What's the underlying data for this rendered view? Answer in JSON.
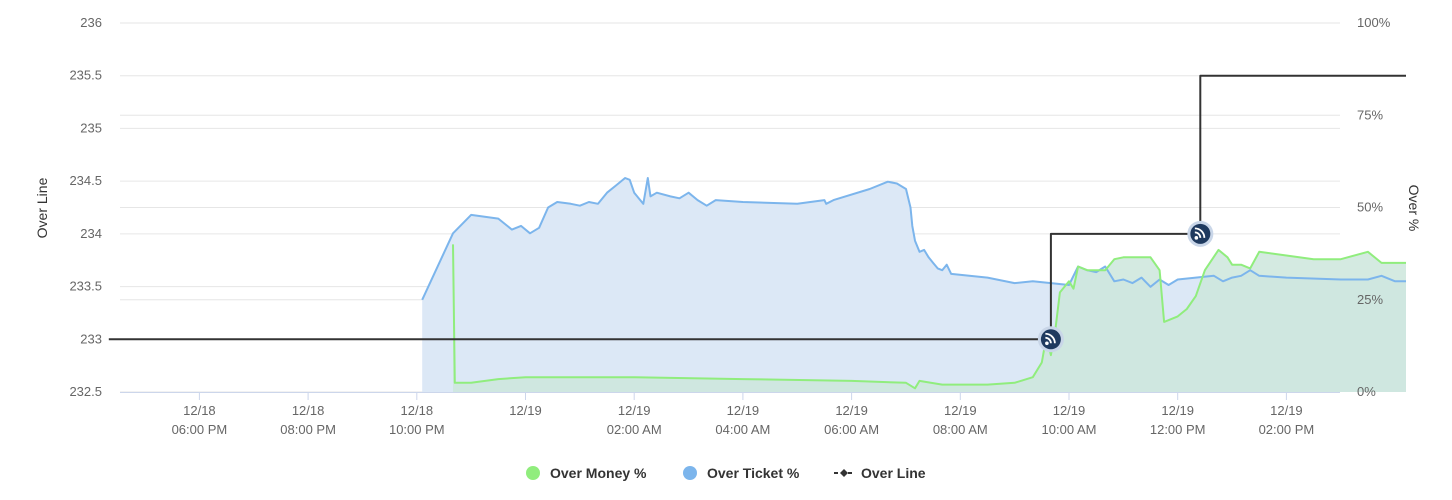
{
  "chart_data": {
    "type": "area",
    "y_axis_left": {
      "label": "Over Line",
      "ticks": [
        "236",
        "235.5",
        "235",
        "234.5",
        "234",
        "233.5",
        "233",
        "232.5"
      ],
      "range": [
        232.5,
        236
      ]
    },
    "y_axis_right": {
      "label": "Over %",
      "ticks": [
        "100%",
        "75%",
        "50%",
        "25%",
        "0%"
      ],
      "range": [
        0,
        100
      ]
    },
    "x_axis": {
      "ticks": [
        {
          "date": "12/18",
          "time": "06:00 PM"
        },
        {
          "date": "12/18",
          "time": "08:00 PM"
        },
        {
          "date": "12/18",
          "time": "10:00 PM"
        },
        {
          "date": "12/19",
          "time": ""
        },
        {
          "date": "12/19",
          "time": "02:00 AM"
        },
        {
          "date": "12/19",
          "time": "04:00 AM"
        },
        {
          "date": "12/19",
          "time": "06:00 AM"
        },
        {
          "date": "12/19",
          "time": "08:00 AM"
        },
        {
          "date": "12/19",
          "time": "10:00 AM"
        },
        {
          "date": "12/19",
          "time": "12:00 PM"
        },
        {
          "date": "12/19",
          "time": "02:00 PM"
        }
      ]
    },
    "legend": {
      "position": "bottom-center",
      "items": [
        {
          "label": "Over Money %",
          "color": "#90ed7d",
          "symbol": "circle"
        },
        {
          "label": "Over Ticket %",
          "color": "#7cb5ec",
          "symbol": "circle"
        },
        {
          "label": "Over Line",
          "color": "#333333",
          "symbol": "line-diamond"
        }
      ]
    },
    "series": [
      {
        "name": "Over Ticket %",
        "axis": "right",
        "color": "#7cb5ec",
        "fill": "#dce8f6",
        "points": [
          [
            "12/18 22:06",
            25.0
          ],
          [
            "12/18 22:40",
            43.0
          ],
          [
            "12/18 23:00",
            48.0
          ],
          [
            "12/18 23:30",
            47.0
          ],
          [
            "12/18 23:45",
            44.0
          ],
          [
            "12/18 23:55",
            45.0
          ],
          [
            "12/19 00:05",
            43.0
          ],
          [
            "12/19 00:15",
            44.5
          ],
          [
            "12/19 00:25",
            50.0
          ],
          [
            "12/19 00:35",
            51.5
          ],
          [
            "12/19 00:50",
            51.0
          ],
          [
            "12/19 01:00",
            50.5
          ],
          [
            "12/19 01:10",
            51.5
          ],
          [
            "12/19 01:20",
            51.0
          ],
          [
            "12/19 01:30",
            54.0
          ],
          [
            "12/19 01:40",
            56.0
          ],
          [
            "12/19 01:50",
            58.0
          ],
          [
            "12/19 01:55",
            57.5
          ],
          [
            "12/19 02:00",
            54.0
          ],
          [
            "12/19 02:05",
            52.5
          ],
          [
            "12/19 02:10",
            51.0
          ],
          [
            "12/19 02:15",
            58.0
          ],
          [
            "12/19 02:18",
            53.0
          ],
          [
            "12/19 02:25",
            54.0
          ],
          [
            "12/19 02:40",
            53.0
          ],
          [
            "12/19 02:50",
            52.5
          ],
          [
            "12/19 03:00",
            54.0
          ],
          [
            "12/19 03:10",
            52.0
          ],
          [
            "12/19 03:20",
            50.5
          ],
          [
            "12/19 03:30",
            52.0
          ],
          [
            "12/19 04:00",
            51.5
          ],
          [
            "12/19 05:00",
            51.0
          ],
          [
            "12/19 05:30",
            52.0
          ],
          [
            "12/19 05:32",
            51.0
          ],
          [
            "12/19 05:40",
            52.0
          ],
          [
            "12/19 06:20",
            55.0
          ],
          [
            "12/19 06:40",
            57.0
          ],
          [
            "12/19 06:50",
            56.5
          ],
          [
            "12/19 07:00",
            55.0
          ],
          [
            "12/19 07:05",
            50.0
          ],
          [
            "12/19 07:07",
            45.0
          ],
          [
            "12/19 07:10",
            41.0
          ],
          [
            "12/19 07:15",
            38.0
          ],
          [
            "12/19 07:20",
            38.5
          ],
          [
            "12/19 07:25",
            36.5
          ],
          [
            "12/19 07:30",
            35.0
          ],
          [
            "12/19 07:35",
            33.5
          ],
          [
            "12/19 07:40",
            33.0
          ],
          [
            "12/19 07:45",
            34.5
          ],
          [
            "12/19 07:50",
            32.0
          ],
          [
            "12/19 08:30",
            31.0
          ],
          [
            "12/19 09:00",
            29.5
          ],
          [
            "12/19 09:20",
            30.0
          ],
          [
            "12/19 09:40",
            29.5
          ],
          [
            "12/19 10:00",
            29.0
          ],
          [
            "12/19 10:10",
            34.0
          ],
          [
            "12/19 10:20",
            33.0
          ],
          [
            "12/19 10:30",
            32.5
          ],
          [
            "12/19 10:40",
            34.0
          ],
          [
            "12/19 10:50",
            30.0
          ],
          [
            "12/19 11:00",
            30.5
          ],
          [
            "12/19 11:10",
            29.5
          ],
          [
            "12/19 11:20",
            31.0
          ],
          [
            "12/19 11:30",
            28.5
          ],
          [
            "12/19 11:40",
            30.5
          ],
          [
            "12/19 11:50",
            29.0
          ],
          [
            "12/19 12:00",
            30.5
          ],
          [
            "12/19 12:20",
            31.0
          ],
          [
            "12/19 12:40",
            31.5
          ],
          [
            "12/19 12:50",
            30.0
          ],
          [
            "12/19 13:00",
            31.0
          ],
          [
            "12/19 13:10",
            31.5
          ],
          [
            "12/19 13:20",
            33.0
          ],
          [
            "12/19 13:30",
            31.5
          ],
          [
            "12/19 14:00",
            31.0
          ],
          [
            "12/19 15:00",
            30.5
          ],
          [
            "12/19 15:30",
            30.5
          ],
          [
            "12/19 15:45",
            31.5
          ],
          [
            "12/19 16:00",
            30.0
          ],
          [
            "12/19 16:12",
            30.0
          ]
        ]
      },
      {
        "name": "Over Money %",
        "axis": "right",
        "color": "#90ed7d",
        "fill": "#cde6dc",
        "points": [
          [
            "12/18 22:40",
            40.0
          ],
          [
            "12/18 22:42",
            2.5
          ],
          [
            "12/18 23:00",
            2.5
          ],
          [
            "12/18 23:30",
            3.5
          ],
          [
            "12/19 00:00",
            4.0
          ],
          [
            "12/19 02:00",
            4.0
          ],
          [
            "12/19 04:00",
            3.5
          ],
          [
            "12/19 06:00",
            3.0
          ],
          [
            "12/19 07:00",
            2.5
          ],
          [
            "12/19 07:10",
            1.0
          ],
          [
            "12/19 07:15",
            3.0
          ],
          [
            "12/19 07:40",
            2.0
          ],
          [
            "12/19 08:00",
            2.0
          ],
          [
            "12/19 08:30",
            2.0
          ],
          [
            "12/19 09:00",
            2.5
          ],
          [
            "12/19 09:20",
            4.0
          ],
          [
            "12/19 09:30",
            8.0
          ],
          [
            "12/19 09:35",
            15.0
          ],
          [
            "12/19 09:40",
            10.0
          ],
          [
            "12/19 09:45",
            17.0
          ],
          [
            "12/19 09:50",
            27.0
          ],
          [
            "12/19 10:00",
            30.0
          ],
          [
            "12/19 10:05",
            28.0
          ],
          [
            "12/19 10:10",
            34.0
          ],
          [
            "12/19 10:20",
            33.0
          ],
          [
            "12/19 10:40",
            33.0
          ],
          [
            "12/19 10:50",
            36.0
          ],
          [
            "12/19 11:00",
            36.5
          ],
          [
            "12/19 11:30",
            36.5
          ],
          [
            "12/19 11:40",
            33.0
          ],
          [
            "12/19 11:45",
            19.0
          ],
          [
            "12/19 12:00",
            20.5
          ],
          [
            "12/19 12:10",
            22.5
          ],
          [
            "12/19 12:20",
            26.0
          ],
          [
            "12/19 12:30",
            33.0
          ],
          [
            "12/19 12:45",
            38.5
          ],
          [
            "12/19 12:55",
            36.5
          ],
          [
            "12/19 13:00",
            34.5
          ],
          [
            "12/19 13:10",
            34.5
          ],
          [
            "12/19 13:20",
            33.5
          ],
          [
            "12/19 13:30",
            38.0
          ],
          [
            "12/19 14:00",
            37.0
          ],
          [
            "12/19 14:30",
            36.0
          ],
          [
            "12/19 15:00",
            36.0
          ],
          [
            "12/19 15:30",
            38.0
          ],
          [
            "12/19 15:45",
            35.0
          ],
          [
            "12/19 16:12",
            35.0
          ]
        ]
      },
      {
        "name": "Over Line",
        "axis": "left",
        "color": "#333333",
        "step": true,
        "points": [
          [
            "12/18 16:20",
            233.0
          ],
          [
            "12/19 09:40",
            233.0
          ],
          [
            "12/19 09:40",
            234.0
          ],
          [
            "12/19 12:25",
            234.0
          ],
          [
            "12/19 12:25",
            235.5
          ],
          [
            "12/19 16:12",
            235.5
          ]
        ]
      }
    ],
    "markers": [
      {
        "series": "Over Line",
        "time": "12/19 09:40",
        "value": 233.0,
        "icon": "rss-icon"
      },
      {
        "series": "Over Line",
        "time": "12/19 12:25",
        "value": 234.0,
        "icon": "rss-icon"
      }
    ],
    "grid": true
  }
}
